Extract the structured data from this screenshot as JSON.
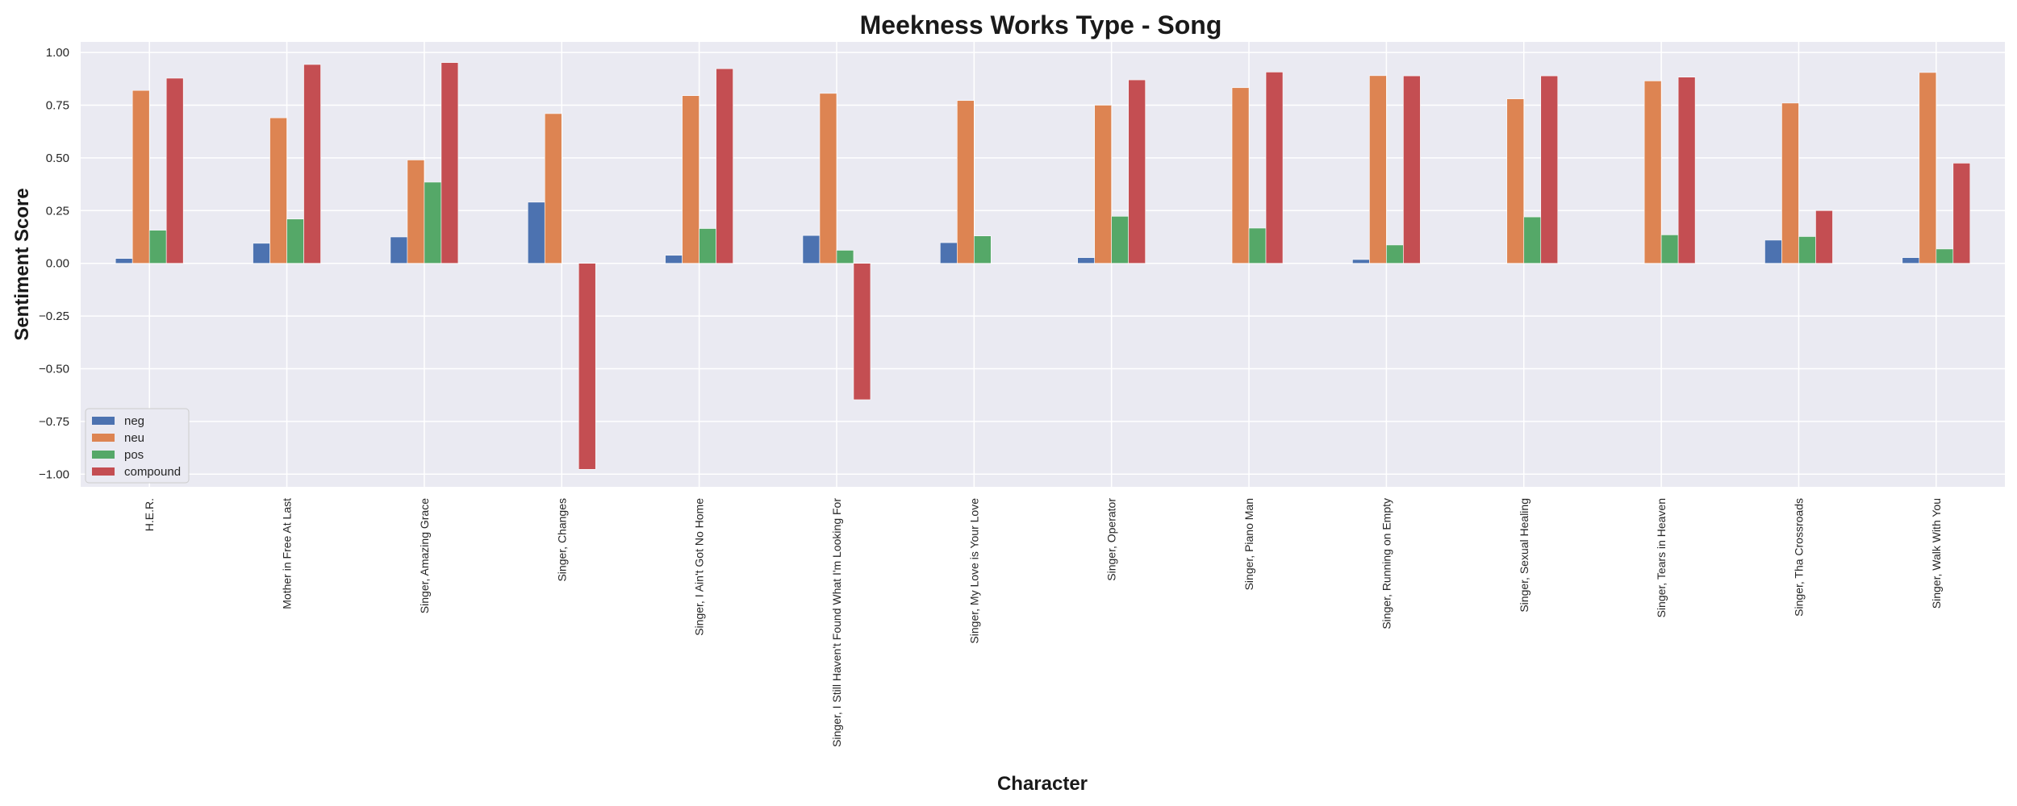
{
  "chart_data": {
    "type": "bar",
    "title": "Meekness Works Type - Song",
    "xlabel": "Character",
    "ylabel": "Sentiment Score",
    "ylim": [
      -1.06,
      1.05
    ],
    "yticks": [
      1.0,
      0.75,
      0.5,
      0.25,
      0.0,
      -0.25,
      -0.5,
      -0.75,
      -1.0
    ],
    "ytick_labels": [
      "1.00",
      "0.75",
      "0.50",
      "0.25",
      "0.00",
      "−0.25",
      "−0.50",
      "−0.75",
      "−1.00"
    ],
    "grid": true,
    "legend_position": "lower-left",
    "categories": [
      "H.E.R.",
      "Mother in Free At Last",
      "Singer, Amazing Grace",
      "Singer, Changes",
      "Singer, I Ain't Got No Home",
      "Singer, I Still Haven't Found What I'm Looking For",
      "Singer, My Love is Your Love",
      "Singer, Operator",
      "Singer, Piano Man",
      "Singer, Running on Empty",
      "Singer, Sexual Healing",
      "Singer, Tears in Heaven",
      "Singer, Tha Crossroads",
      "Singer, Walk With You"
    ],
    "series": [
      {
        "name": "neg",
        "color": "#4c72b0",
        "values": [
          0.023,
          0.095,
          0.125,
          0.29,
          0.038,
          0.132,
          0.098,
          0.027,
          0.0,
          0.018,
          0.0,
          0.0,
          0.11,
          0.027
        ]
      },
      {
        "name": "neu",
        "color": "#dd8452",
        "values": [
          0.82,
          0.69,
          0.49,
          0.71,
          0.795,
          0.806,
          0.772,
          0.75,
          0.833,
          0.89,
          0.78,
          0.865,
          0.76,
          0.905
        ]
      },
      {
        "name": "pos",
        "color": "#55a868",
        "values": [
          0.157,
          0.21,
          0.385,
          0.0,
          0.165,
          0.062,
          0.13,
          0.223,
          0.167,
          0.087,
          0.22,
          0.135,
          0.127,
          0.068
        ]
      },
      {
        "name": "compound",
        "color": "#c44e52",
        "values": [
          0.878,
          0.943,
          0.952,
          -0.977,
          0.923,
          -0.647,
          0.0,
          0.87,
          0.907,
          0.889,
          0.889,
          0.883,
          0.25,
          0.475
        ]
      }
    ]
  }
}
